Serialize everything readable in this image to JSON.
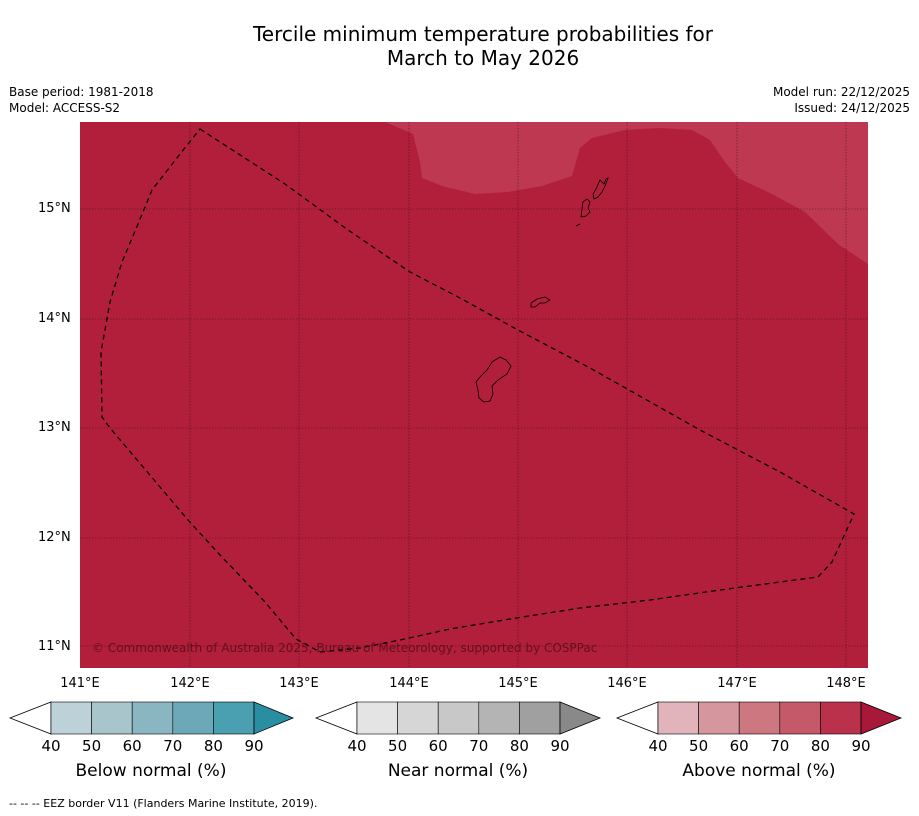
{
  "title": {
    "line1": "Tercile minimum temperature probabilities for",
    "line2": "March to May 2026"
  },
  "info": {
    "base_period": "Base period: 1981-2018",
    "model": "Model: ACCESS-S2",
    "model_run": "Model run: 22/12/2025",
    "issued": "Issued: 24/12/2025"
  },
  "map": {
    "lat_labels": [
      "15°N",
      "14°N",
      "13°N",
      "12°N",
      "11°N"
    ],
    "lon_labels": [
      "141°E",
      "142°E",
      "143°E",
      "144°E",
      "145°E",
      "146°E",
      "147°E",
      "148°E"
    ],
    "copyright": "© Commonwealth of Australia 2025, Bureau of Meteorology, supported by COSPPac",
    "colors": {
      "above_80_90": "#b21f3a",
      "above_70_80": "#bd3850"
    }
  },
  "legends": [
    {
      "title": "Below normal (%)",
      "ticks": [
        "40",
        "50",
        "60",
        "70",
        "80",
        "90"
      ],
      "colors": [
        "#ffffff",
        "#bdd2d8",
        "#a8c5cb",
        "#8ab6c1",
        "#6ca9b8",
        "#4aa0b1",
        "#2a8ea3"
      ]
    },
    {
      "title": "Near normal (%)",
      "ticks": [
        "40",
        "50",
        "60",
        "70",
        "80",
        "90"
      ],
      "colors": [
        "#ffffff",
        "#e4e4e4",
        "#d6d6d6",
        "#c8c8c8",
        "#b4b4b4",
        "#a0a0a0",
        "#898989"
      ]
    },
    {
      "title": "Above normal (%)",
      "ticks": [
        "40",
        "50",
        "60",
        "70",
        "80",
        "90"
      ],
      "colors": [
        "#ffffff",
        "#e1b4bb",
        "#d5969e",
        "#cd7780",
        "#c4596a",
        "#b9314b",
        "#a8183a"
      ]
    }
  ],
  "footnote": "--  --  -- EEZ border V11 (Flanders Marine Institute, 2019)."
}
